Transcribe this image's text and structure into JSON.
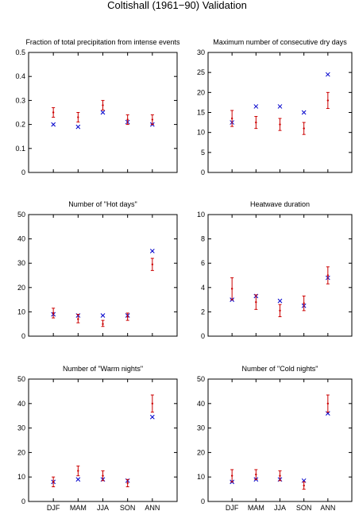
{
  "figure_title": "Coltishall (1961−90) Validation",
  "colors": {
    "model": "#cc0000",
    "observed": "#0000cc",
    "axes": "#000000"
  },
  "chart_data": [
    {
      "type": "scatter",
      "title": "Fraction of total precipitation from intense events",
      "categories": [
        "DJF",
        "MAM",
        "JJA",
        "SON",
        "ANN"
      ],
      "ylim": [
        0,
        0.5
      ],
      "yticks": [
        0,
        0.1,
        0.2,
        0.3,
        0.4,
        0.5
      ],
      "ytick_labels": [
        "0",
        "0.1",
        "0.2",
        "0.3",
        "0.4",
        "0.5"
      ],
      "show_xtick_labels": false,
      "series": [
        {
          "marker": "x",
          "values": [
            0.2,
            0.19,
            0.25,
            0.21,
            0.2
          ]
        },
        {
          "marker": "errorbar",
          "values": [
            0.25,
            0.23,
            0.28,
            0.22,
            0.22
          ],
          "low": [
            0.23,
            0.21,
            0.26,
            0.2,
            0.2
          ],
          "high": [
            0.27,
            0.25,
            0.3,
            0.24,
            0.24
          ]
        }
      ]
    },
    {
      "type": "scatter",
      "title": "Maximum number of consecutive dry days",
      "categories": [
        "DJF",
        "MAM",
        "JJA",
        "SON",
        "ANN"
      ],
      "ylim": [
        0,
        30
      ],
      "yticks": [
        0,
        5,
        10,
        15,
        20,
        25,
        30
      ],
      "ytick_labels": [
        "0",
        "5",
        "10",
        "15",
        "20",
        "25",
        "30"
      ],
      "show_xtick_labels": false,
      "series": [
        {
          "marker": "x",
          "values": [
            12.5,
            16.5,
            16.5,
            15,
            24.5
          ]
        },
        {
          "marker": "errorbar",
          "values": [
            13.5,
            12.5,
            12,
            11,
            18
          ],
          "low": [
            11.5,
            11,
            10.5,
            9.5,
            16
          ],
          "high": [
            15.5,
            14,
            13.5,
            12.5,
            20
          ]
        }
      ]
    },
    {
      "type": "scatter",
      "title": "Number of \"Hot days\"",
      "categories": [
        "DJF",
        "MAM",
        "JJA",
        "SON",
        "ANN"
      ],
      "ylim": [
        0,
        50
      ],
      "yticks": [
        0,
        10,
        20,
        30,
        40,
        50
      ],
      "ytick_labels": [
        "0",
        "10",
        "20",
        "30",
        "40",
        "50"
      ],
      "show_xtick_labels": false,
      "series": [
        {
          "marker": "x",
          "values": [
            9,
            8.5,
            8.5,
            8.5,
            35
          ]
        },
        {
          "marker": "errorbar",
          "values": [
            9.5,
            7,
            5,
            8,
            29.5
          ],
          "low": [
            7.5,
            5.5,
            4,
            6.5,
            27
          ],
          "high": [
            11.5,
            9,
            6.5,
            9.5,
            32
          ]
        }
      ]
    },
    {
      "type": "scatter",
      "title": "Heatwave duration",
      "categories": [
        "DJF",
        "MAM",
        "JJA",
        "SON",
        "ANN"
      ],
      "ylim": [
        0,
        10
      ],
      "yticks": [
        0,
        2,
        4,
        6,
        8,
        10
      ],
      "ytick_labels": [
        "0",
        "2",
        "4",
        "6",
        "8",
        "10"
      ],
      "show_xtick_labels": false,
      "series": [
        {
          "marker": "x",
          "values": [
            3,
            3.3,
            2.9,
            2.5,
            4.8
          ]
        },
        {
          "marker": "errorbar",
          "values": [
            3.9,
            2.8,
            2.1,
            2.7,
            5
          ],
          "low": [
            3,
            2.2,
            1.6,
            2.1,
            4.3
          ],
          "high": [
            4.8,
            3.4,
            2.6,
            3.3,
            5.7
          ]
        }
      ]
    },
    {
      "type": "scatter",
      "title": "Number of \"Warm nights\"",
      "categories": [
        "DJF",
        "MAM",
        "JJA",
        "SON",
        "ANN"
      ],
      "ylim": [
        0,
        50
      ],
      "yticks": [
        0,
        10,
        20,
        30,
        40,
        50
      ],
      "ytick_labels": [
        "0",
        "10",
        "20",
        "30",
        "40",
        "50"
      ],
      "show_xtick_labels": true,
      "series": [
        {
          "marker": "x",
          "values": [
            8,
            9,
            9,
            8.5,
            34.5
          ]
        },
        {
          "marker": "errorbar",
          "values": [
            8,
            12.5,
            10.5,
            7.5,
            40
          ],
          "low": [
            6,
            10.5,
            8.5,
            6,
            36.5
          ],
          "high": [
            10,
            14.5,
            12.5,
            9,
            43.5
          ]
        }
      ]
    },
    {
      "type": "scatter",
      "title": "Number of \"Cold nights\"",
      "categories": [
        "DJF",
        "MAM",
        "JJA",
        "SON",
        "ANN"
      ],
      "ylim": [
        0,
        50
      ],
      "yticks": [
        0,
        10,
        20,
        30,
        40,
        50
      ],
      "ytick_labels": [
        "0",
        "10",
        "20",
        "30",
        "40",
        "50"
      ],
      "show_xtick_labels": true,
      "series": [
        {
          "marker": "x",
          "values": [
            8,
            9,
            9,
            8.5,
            36
          ]
        },
        {
          "marker": "errorbar",
          "values": [
            10.5,
            11,
            10.5,
            6.5,
            40
          ],
          "low": [
            8,
            9,
            8.5,
            5,
            36.5
          ],
          "high": [
            13,
            13,
            12.5,
            8,
            43.5
          ]
        }
      ]
    }
  ]
}
